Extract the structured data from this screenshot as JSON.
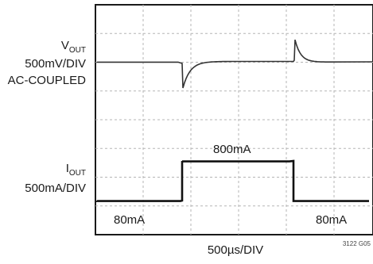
{
  "chart_data": {
    "type": "line",
    "x_scale": "500µs/DIV",
    "divisions": {
      "x": 10,
      "y": 8
    },
    "grid": true,
    "figure_code": "3122 G05",
    "series": [
      {
        "name": "VOUT",
        "label_main": "V",
        "label_sub": "OUT",
        "scale": "500mV/DIV",
        "coupling": "AC-COUPLED",
        "color": "#333333"
      },
      {
        "name": "IOUT",
        "label_main": "I",
        "label_sub": "OUT",
        "scale": "500mA/DIV",
        "color": "#111111"
      }
    ],
    "annotations": {
      "low_left": "80mA",
      "high": "800mA",
      "low_right": "80mA"
    }
  }
}
